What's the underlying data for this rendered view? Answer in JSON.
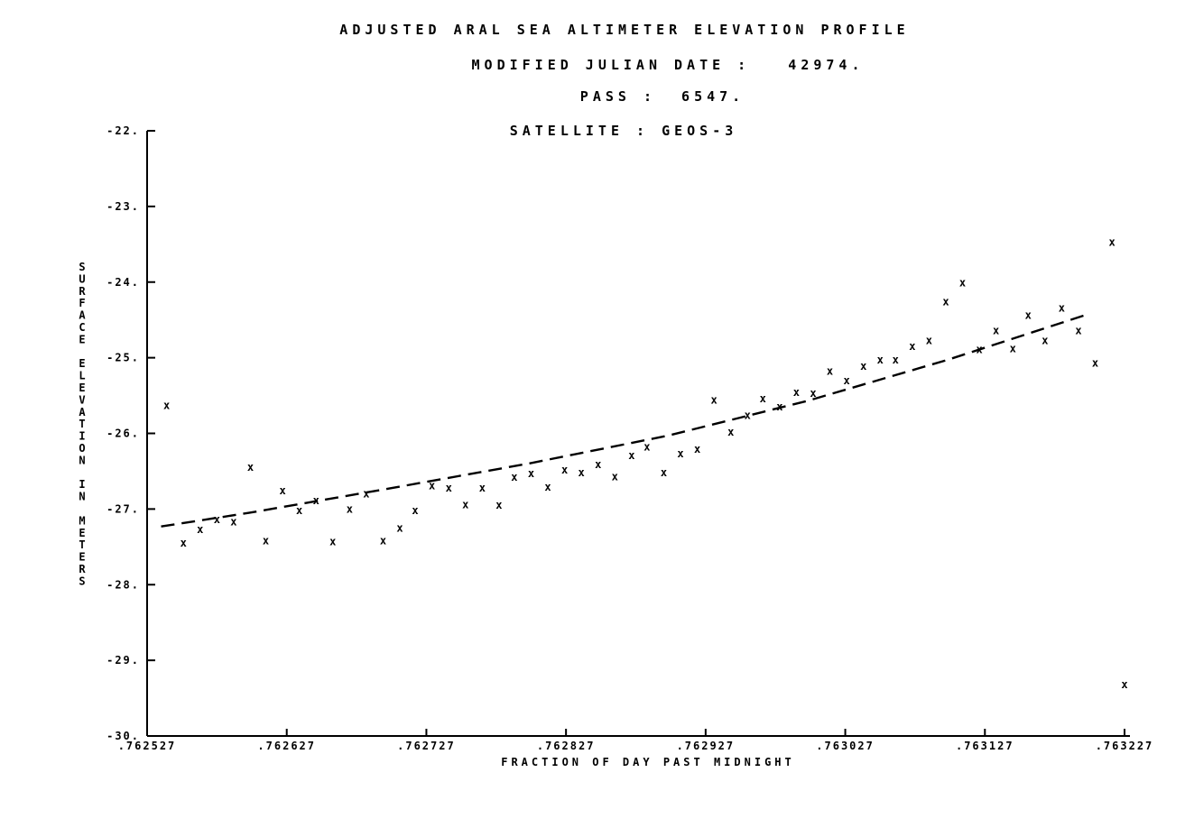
{
  "chart_data": {
    "type": "scatter",
    "title": "ADJUSTED ARAL SEA ALTIMETER ELEVATION PROFILE",
    "subtitle_lines": [
      "MODIFIED JULIAN DATE :   42974.",
      "PASS :  6547.",
      "SATELLITE : GEOS-3"
    ],
    "xlabel": "FRACTION OF DAY PAST MIDNIGHT",
    "ylabel": "SURFACE ELEVATION IN METERS",
    "xlim": [
      0.762527,
      0.763227
    ],
    "ylim": [
      -30,
      -22
    ],
    "x_tick_values": [
      0.762527,
      0.762627,
      0.762727,
      0.762827,
      0.762927,
      0.763027,
      0.763127,
      0.763227
    ],
    "x_tick_labels": [
      ".762527",
      ".762627",
      ".762727",
      ".762827",
      ".762927",
      ".763027",
      ".763127",
      ".763227"
    ],
    "y_tick_values": [
      -22,
      -23,
      -24,
      -25,
      -26,
      -27,
      -28,
      -29,
      -30
    ],
    "y_tick_labels": [
      "-22.",
      "-23.",
      "-24.",
      "-25.",
      "-26.",
      "-27.",
      "-28.",
      "-29.",
      "-30."
    ],
    "marker": "x",
    "grid": false,
    "series": [
      {
        "type": "scatter",
        "x": [
          0.762541,
          0.762553,
          0.762565,
          0.762577,
          0.762589,
          0.762601,
          0.762612,
          0.762624,
          0.762636,
          0.762648,
          0.76266,
          0.762672,
          0.762684,
          0.762696,
          0.762708,
          0.762719,
          0.762731,
          0.762743,
          0.762755,
          0.762767,
          0.762779,
          0.76279,
          0.762802,
          0.762814,
          0.762826,
          0.762838,
          0.76285,
          0.762862,
          0.762874,
          0.762885,
          0.762897,
          0.762909,
          0.762921,
          0.762933,
          0.762945,
          0.762957,
          0.762968,
          0.76298,
          0.762992,
          0.763004,
          0.763016,
          0.763028,
          0.76304,
          0.763052,
          0.763063,
          0.763075,
          0.763087,
          0.763099,
          0.763111,
          0.763123,
          0.763135,
          0.763147,
          0.763158,
          0.76317,
          0.763182,
          0.763194,
          0.763206,
          0.763218,
          0.763227
        ],
        "y": [
          -25.63,
          -27.45,
          -27.27,
          -27.14,
          -27.17,
          -26.45,
          -27.42,
          -26.76,
          -27.02,
          -26.89,
          -27.43,
          -27.0,
          -26.8,
          -27.42,
          -27.25,
          -27.02,
          -26.69,
          -26.72,
          -26.94,
          -26.72,
          -26.95,
          -26.58,
          -26.53,
          -26.71,
          -26.48,
          -26.52,
          -26.41,
          -26.57,
          -26.29,
          -26.18,
          -26.52,
          -26.27,
          -26.21,
          -25.56,
          -25.98,
          -25.76,
          -25.54,
          -25.65,
          -25.46,
          -25.47,
          -25.18,
          -25.3,
          -25.11,
          -25.03,
          -25.03,
          -24.85,
          -24.77,
          -24.26,
          -24.01,
          -24.89,
          -24.64,
          -24.88,
          -24.44,
          -24.77,
          -24.34,
          -24.64,
          -25.07,
          -23.47,
          -29.32
        ]
      },
      {
        "type": "line",
        "style": "dashed",
        "x": [
          0.762537,
          0.7626,
          0.7627,
          0.7628,
          0.7629,
          0.763,
          0.7631,
          0.7632
        ],
        "y": [
          -27.23,
          -27.05,
          -26.73,
          -26.4,
          -26.03,
          -25.57,
          -25.03,
          -24.43
        ]
      }
    ]
  }
}
